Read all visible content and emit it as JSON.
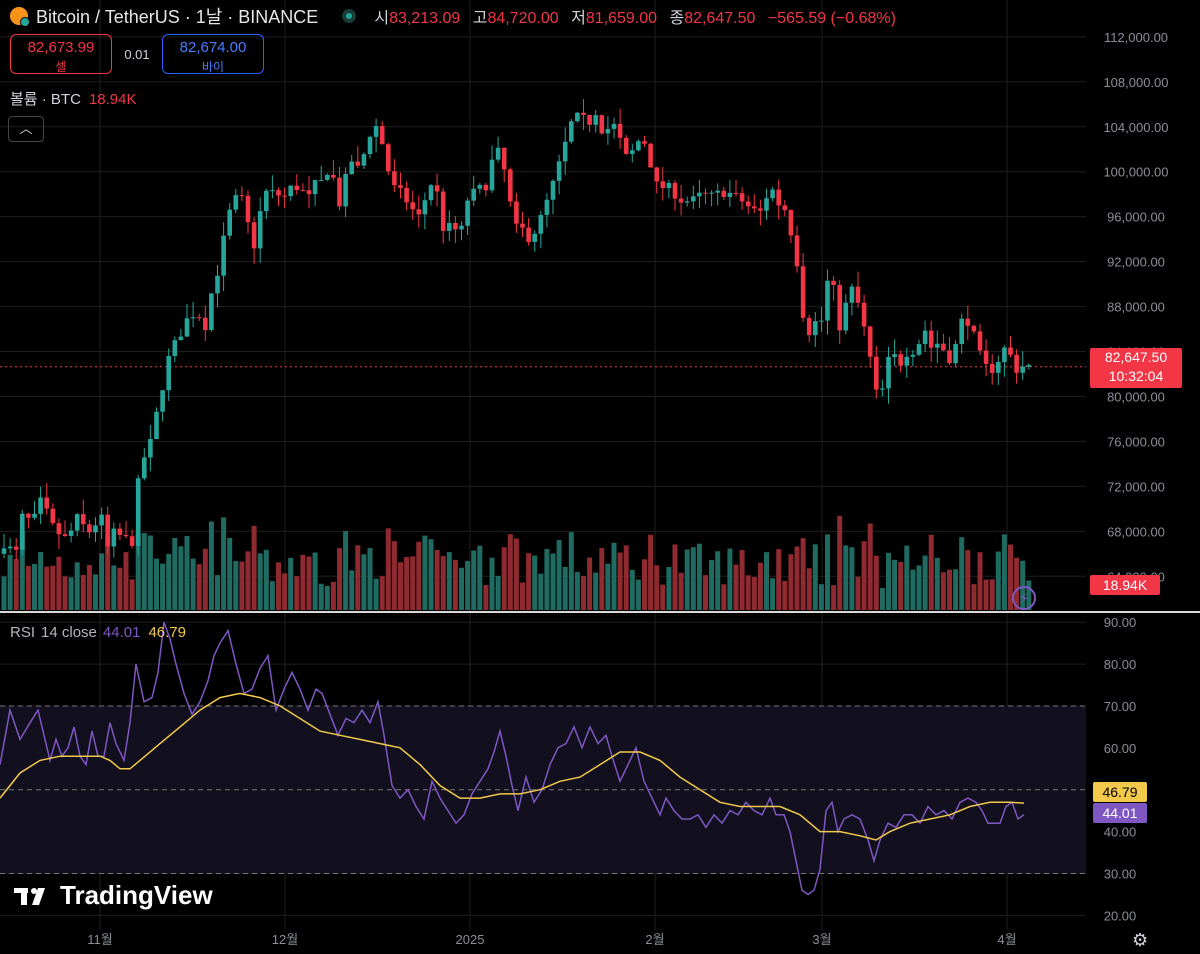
{
  "header": {
    "title": "Bitcoin / TetherUS · 1날 · BINANCE",
    "open_label": "시",
    "open": "83,213.09",
    "high_label": "고",
    "high": "84,720.00",
    "low_label": "저",
    "low": "81,659.00",
    "close_label": "종",
    "close": "82,647.50",
    "change": "−565.59 (−0.68%)"
  },
  "trade": {
    "sell_price": "82,673.99",
    "sell_label": "셀",
    "spread": "0.01",
    "buy_price": "82,674.00",
    "buy_label": "바이"
  },
  "volume_legend": {
    "label": "볼륨 · BTC",
    "value": "18.94K"
  },
  "rsi_legend": {
    "label": "RSI",
    "params": "14 close",
    "rsi_value": "44.01",
    "ma_value": "46.79"
  },
  "branding": {
    "name": "TradingView"
  },
  "price_tag": {
    "price": "82,647.50",
    "countdown": "10:32:04"
  },
  "volume_tag": "18.94K",
  "rsi_tags": {
    "ma": "46.79",
    "rsi": "44.01"
  },
  "colors": {
    "up": "#26a69a",
    "down": "#f23645",
    "rsi": "#7e57c2",
    "rsi_ma": "#f3c94b",
    "bg": "#000000"
  },
  "chart_data": [
    {
      "type": "candlestick",
      "y_ticks": [
        "112,000.00",
        "108,000.00",
        "104,000.00",
        "100,000.00",
        "96,000.00",
        "92,000.00",
        "88,000.00",
        "84,000.00",
        "80,000.00",
        "76,000.00",
        "72,000.00",
        "68,000.00",
        "64,000.00"
      ],
      "x_ticks": [
        "11월",
        "12월",
        "2025",
        "2월",
        "3월",
        "4월"
      ],
      "ylim": [
        61000,
        113500
      ],
      "close_anchor_points": [
        [
          0,
          66000
        ],
        [
          6,
          67400
        ],
        [
          12,
          66000
        ],
        [
          18,
          66200
        ],
        [
          24,
          70500
        ],
        [
          30,
          68500
        ],
        [
          36,
          69400
        ],
        [
          42,
          71000
        ],
        [
          50,
          68700
        ],
        [
          60,
          67700
        ],
        [
          68,
          67200
        ],
        [
          76,
          69300
        ],
        [
          84,
          68400
        ],
        [
          92,
          67800
        ],
        [
          100,
          69800
        ],
        [
          108,
          66400
        ],
        [
          114,
          67900
        ],
        [
          124,
          67400
        ],
        [
          132,
          67000
        ],
        [
          140,
          73800
        ],
        [
          150,
          75700
        ],
        [
          162,
          80700
        ],
        [
          170,
          83900
        ],
        [
          180,
          85500
        ],
        [
          190,
          87400
        ],
        [
          200,
          87200
        ],
        [
          206,
          86200
        ],
        [
          212,
          89500
        ],
        [
          220,
          91800
        ],
        [
          226,
          95400
        ],
        [
          232,
          97000
        ],
        [
          240,
          98200
        ],
        [
          248,
          95300
        ],
        [
          254,
          93400
        ],
        [
          264,
          98200
        ],
        [
          274,
          98100
        ],
        [
          284,
          97700
        ],
        [
          292,
          98700
        ],
        [
          300,
          98600
        ],
        [
          308,
          97500
        ],
        [
          314,
          98800
        ],
        [
          322,
          99100
        ],
        [
          330,
          100600
        ],
        [
          340,
          97000
        ],
        [
          350,
          101200
        ],
        [
          360,
          100000
        ],
        [
          368,
          103200
        ],
        [
          378,
          104200
        ],
        [
          386,
          101000
        ],
        [
          392,
          98700
        ],
        [
          400,
          98200
        ],
        [
          410,
          97000
        ],
        [
          418,
          95800
        ],
        [
          426,
          97800
        ],
        [
          434,
          99600
        ],
        [
          444,
          94600
        ],
        [
          452,
          95300
        ],
        [
          460,
          94200
        ],
        [
          468,
          97700
        ],
        [
          476,
          98300
        ],
        [
          486,
          98800
        ],
        [
          496,
          102300
        ],
        [
          506,
          99600
        ],
        [
          514,
          95000
        ],
        [
          522,
          94900
        ],
        [
          530,
          94000
        ],
        [
          538,
          95200
        ],
        [
          548,
          97600
        ],
        [
          556,
          99700
        ],
        [
          564,
          102100
        ],
        [
          572,
          104500
        ],
        [
          580,
          105000
        ],
        [
          588,
          104200
        ],
        [
          596,
          105400
        ],
        [
          604,
          103200
        ],
        [
          612,
          104500
        ],
        [
          620,
          102800
        ],
        [
          626,
          101300
        ],
        [
          634,
          101900
        ],
        [
          642,
          103400
        ],
        [
          650,
          100900
        ],
        [
          658,
          98400
        ],
        [
          666,
          98800
        ],
        [
          672,
          98300
        ],
        [
          682,
          97400
        ],
        [
          692,
          97400
        ],
        [
          702,
          98000
        ],
        [
          712,
          97800
        ],
        [
          722,
          98200
        ],
        [
          732,
          98000
        ],
        [
          742,
          97400
        ],
        [
          752,
          96600
        ],
        [
          762,
          96400
        ],
        [
          770,
          98900
        ],
        [
          778,
          97200
        ],
        [
          786,
          96600
        ],
        [
          792,
          94200
        ],
        [
          798,
          91500
        ],
        [
          806,
          85000
        ],
        [
          812,
          86500
        ],
        [
          818,
          86700
        ],
        [
          824,
          86800
        ],
        [
          830,
          92600
        ],
        [
          838,
          85700
        ],
        [
          846,
          88200
        ],
        [
          854,
          90000
        ],
        [
          860,
          87400
        ],
        [
          868,
          84700
        ],
        [
          874,
          81100
        ],
        [
          880,
          79000
        ],
        [
          886,
          83000
        ],
        [
          894,
          83600
        ],
        [
          902,
          82900
        ],
        [
          908,
          84200
        ],
        [
          916,
          84000
        ],
        [
          924,
          86200
        ],
        [
          932,
          84200
        ],
        [
          940,
          85000
        ],
        [
          948,
          83100
        ],
        [
          956,
          84600
        ],
        [
          962,
          86800
        ],
        [
          970,
          86700
        ],
        [
          978,
          84000
        ],
        [
          986,
          82600
        ],
        [
          994,
          82400
        ],
        [
          1002,
          84000
        ],
        [
          1008,
          84600
        ],
        [
          1014,
          82200
        ],
        [
          1020,
          82700
        ],
        [
          1026,
          82650
        ]
      ],
      "last_price": 82647.5
    },
    {
      "type": "line",
      "series": [
        {
          "name": "RSI"
        },
        {
          "name": "MA"
        }
      ],
      "y_ticks": [
        "90.00",
        "80.00",
        "70.00",
        "60.00",
        "50.00",
        "40.00",
        "30.00",
        "20.00"
      ],
      "bands": [
        30,
        50,
        70
      ],
      "ylim": [
        16.5,
        91
      ],
      "rsi_points": [
        [
          0,
          56
        ],
        [
          10,
          69
        ],
        [
          20,
          62
        ],
        [
          30,
          66
        ],
        [
          38,
          69
        ],
        [
          44,
          63
        ],
        [
          50,
          57
        ],
        [
          56,
          62
        ],
        [
          62,
          58
        ],
        [
          68,
          60
        ],
        [
          74,
          65
        ],
        [
          80,
          58
        ],
        [
          86,
          56
        ],
        [
          92,
          64
        ],
        [
          98,
          58
        ],
        [
          104,
          58
        ],
        [
          110,
          66
        ],
        [
          116,
          61
        ],
        [
          124,
          57
        ],
        [
          130,
          66
        ],
        [
          136,
          80
        ],
        [
          144,
          71
        ],
        [
          152,
          72
        ],
        [
          158,
          78
        ],
        [
          164,
          90
        ],
        [
          170,
          86
        ],
        [
          176,
          80
        ],
        [
          184,
          73
        ],
        [
          192,
          68
        ],
        [
          200,
          71
        ],
        [
          208,
          76
        ],
        [
          214,
          82
        ],
        [
          220,
          85
        ],
        [
          228,
          88
        ],
        [
          236,
          80
        ],
        [
          244,
          73
        ],
        [
          252,
          74
        ],
        [
          260,
          79
        ],
        [
          268,
          82
        ],
        [
          276,
          69
        ],
        [
          284,
          74
        ],
        [
          292,
          78
        ],
        [
          300,
          74
        ],
        [
          308,
          69
        ],
        [
          316,
          74
        ],
        [
          322,
          73
        ],
        [
          330,
          68
        ],
        [
          338,
          63
        ],
        [
          346,
          67
        ],
        [
          354,
          66
        ],
        [
          362,
          69
        ],
        [
          370,
          66
        ],
        [
          378,
          71
        ],
        [
          384,
          63
        ],
        [
          392,
          51
        ],
        [
          400,
          48
        ],
        [
          408,
          50
        ],
        [
          416,
          46
        ],
        [
          424,
          43
        ],
        [
          432,
          52
        ],
        [
          440,
          48
        ],
        [
          448,
          45
        ],
        [
          456,
          42
        ],
        [
          464,
          44
        ],
        [
          472,
          49
        ],
        [
          480,
          52
        ],
        [
          488,
          55
        ],
        [
          494,
          59
        ],
        [
          500,
          64
        ],
        [
          506,
          58
        ],
        [
          512,
          51
        ],
        [
          518,
          45
        ],
        [
          526,
          53
        ],
        [
          534,
          47
        ],
        [
          542,
          50
        ],
        [
          550,
          56
        ],
        [
          558,
          60
        ],
        [
          566,
          61
        ],
        [
          574,
          65
        ],
        [
          582,
          60
        ],
        [
          590,
          65
        ],
        [
          598,
          61
        ],
        [
          606,
          63
        ],
        [
          612,
          58
        ],
        [
          620,
          52
        ],
        [
          628,
          56
        ],
        [
          636,
          60
        ],
        [
          644,
          52
        ],
        [
          652,
          48
        ],
        [
          660,
          44
        ],
        [
          666,
          48
        ],
        [
          674,
          45
        ],
        [
          682,
          43
        ],
        [
          690,
          43
        ],
        [
          698,
          44
        ],
        [
          706,
          41
        ],
        [
          714,
          44
        ],
        [
          722,
          42
        ],
        [
          730,
          45
        ],
        [
          738,
          44
        ],
        [
          746,
          47
        ],
        [
          754,
          45
        ],
        [
          762,
          44
        ],
        [
          770,
          48
        ],
        [
          776,
          44
        ],
        [
          784,
          44
        ],
        [
          790,
          40
        ],
        [
          796,
          33
        ],
        [
          802,
          26
        ],
        [
          808,
          25
        ],
        [
          814,
          26
        ],
        [
          820,
          31
        ],
        [
          826,
          45
        ],
        [
          832,
          47
        ],
        [
          838,
          40
        ],
        [
          844,
          43
        ],
        [
          852,
          44
        ],
        [
          860,
          43
        ],
        [
          868,
          38
        ],
        [
          874,
          33
        ],
        [
          880,
          38
        ],
        [
          888,
          42
        ],
        [
          896,
          41
        ],
        [
          904,
          44
        ],
        [
          912,
          44
        ],
        [
          920,
          42
        ],
        [
          928,
          46
        ],
        [
          936,
          44
        ],
        [
          944,
          45
        ],
        [
          952,
          43
        ],
        [
          960,
          47
        ],
        [
          968,
          48
        ],
        [
          976,
          47
        ],
        [
          982,
          45
        ],
        [
          988,
          42
        ],
        [
          994,
          42
        ],
        [
          1000,
          42
        ],
        [
          1006,
          46
        ],
        [
          1012,
          47
        ],
        [
          1018,
          43
        ],
        [
          1024,
          44
        ]
      ],
      "ma_points": [
        [
          0,
          48
        ],
        [
          20,
          54
        ],
        [
          40,
          57
        ],
        [
          60,
          58
        ],
        [
          80,
          58
        ],
        [
          100,
          58
        ],
        [
          110,
          57
        ],
        [
          120,
          55
        ],
        [
          130,
          55
        ],
        [
          140,
          57
        ],
        [
          160,
          61
        ],
        [
          180,
          65
        ],
        [
          200,
          69
        ],
        [
          220,
          72
        ],
        [
          240,
          73
        ],
        [
          260,
          72
        ],
        [
          280,
          70
        ],
        [
          300,
          67
        ],
        [
          320,
          64
        ],
        [
          340,
          63
        ],
        [
          360,
          62
        ],
        [
          380,
          61
        ],
        [
          400,
          60
        ],
        [
          420,
          56
        ],
        [
          440,
          51
        ],
        [
          460,
          48
        ],
        [
          480,
          48
        ],
        [
          500,
          49
        ],
        [
          520,
          49
        ],
        [
          540,
          50
        ],
        [
          560,
          52
        ],
        [
          580,
          53
        ],
        [
          600,
          56
        ],
        [
          620,
          59
        ],
        [
          640,
          59
        ],
        [
          660,
          57
        ],
        [
          680,
          53
        ],
        [
          700,
          50
        ],
        [
          720,
          47
        ],
        [
          740,
          46
        ],
        [
          760,
          46
        ],
        [
          780,
          46
        ],
        [
          800,
          44
        ],
        [
          820,
          40
        ],
        [
          840,
          40
        ],
        [
          860,
          39
        ],
        [
          876,
          38
        ],
        [
          890,
          40
        ],
        [
          910,
          42
        ],
        [
          930,
          43
        ],
        [
          950,
          44
        ],
        [
          970,
          46
        ],
        [
          990,
          47
        ],
        [
          1010,
          47
        ],
        [
          1024,
          46.8
        ]
      ]
    }
  ]
}
